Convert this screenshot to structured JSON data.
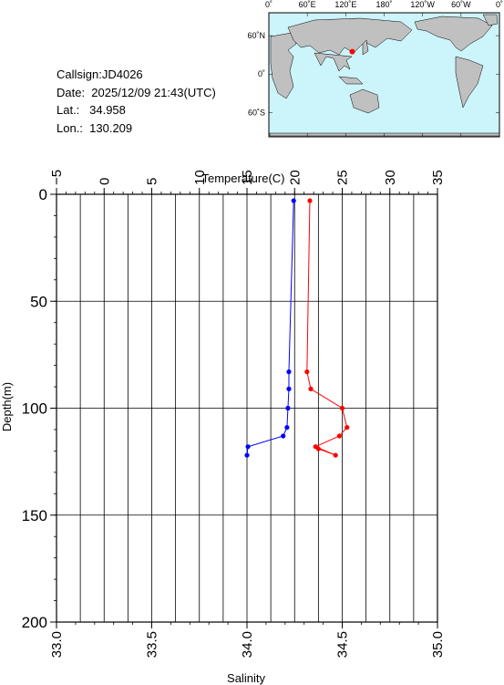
{
  "station": {
    "callsign": "Callsign:JD4026",
    "date": "Date:  2025/12/09 21:43(UTC)",
    "lat": "Lat.:   34.958",
    "lon": "Lon.:  130.209"
  },
  "map": {
    "lon_labels": [
      "0˚",
      "60˚E",
      "120˚E",
      "180˚",
      "120˚W",
      "60˚W",
      "0˚"
    ],
    "lat_labels": [
      "60˚N",
      "0˚",
      "60˚S"
    ],
    "marker": {
      "lat": 34.958,
      "lon": 130.209
    },
    "colors": {
      "ocean": "#ccf4fb",
      "land": "#c0c0c0",
      "marker": "#ff0000"
    }
  },
  "chart_data": {
    "type": "line",
    "top_axis_label": "Temperature(C)",
    "bottom_axis_label": "Salinity",
    "y_axis_label": "Depth(m)",
    "temperature_ticks": [
      "−5",
      "0",
      "5",
      "10",
      "15",
      "20",
      "25",
      "30",
      "35"
    ],
    "salinity_ticks": [
      "33.0",
      "33.5",
      "34.0",
      "34.5",
      "35.0"
    ],
    "depth_ticks": [
      "0",
      "50",
      "100",
      "150",
      "200"
    ],
    "temperature_range": [
      -5,
      35
    ],
    "salinity_range": [
      33.0,
      35.0
    ],
    "depth_range": [
      0,
      200
    ],
    "grid": true,
    "series": [
      {
        "axis": "salinity",
        "color": "#0000ff",
        "points": [
          {
            "depth": 3,
            "value": 34.245
          },
          {
            "depth": 83,
            "value": 34.22
          },
          {
            "depth": 91,
            "value": 34.22
          },
          {
            "depth": 100,
            "value": 34.215
          },
          {
            "depth": 109,
            "value": 34.21
          },
          {
            "depth": 113,
            "value": 34.19
          },
          {
            "depth": 118,
            "value": 34.005
          },
          {
            "depth": 122,
            "value": 34.0
          }
        ]
      },
      {
        "axis": "temperature",
        "color": "#ff0000",
        "points": [
          {
            "depth": 3,
            "value": 21.6
          },
          {
            "depth": 83,
            "value": 21.3
          },
          {
            "depth": 91,
            "value": 21.7
          },
          {
            "depth": 100,
            "value": 25.0
          },
          {
            "depth": 109,
            "value": 25.5
          },
          {
            "depth": 113,
            "value": 24.7
          },
          {
            "depth": 118,
            "value": 22.2
          },
          {
            "depth": 122,
            "value": 24.3
          },
          {
            "depth": 119,
            "value": 22.5
          }
        ]
      }
    ]
  }
}
